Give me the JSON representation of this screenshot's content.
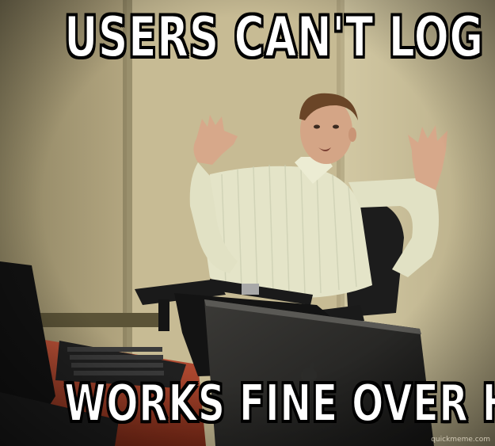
{
  "meme": {
    "top_text": "USERS CAN'T LOG IN?",
    "bottom_text": "WORKS FINE OVER HERE",
    "watermark": "quickmeme.com"
  },
  "colors": {
    "wall": "#c9bd97",
    "wall_shadow": "#8f845f",
    "shirt": "#e7e7cc",
    "skin": "#d8a98b",
    "hair": "#6b4526",
    "chair": "#1b1b1b",
    "desk": "#b44a2c",
    "laptop": "#2a2a2a",
    "caption_fill": "#ffffff",
    "caption_outline": "#000000"
  },
  "icons": [
    "apple-logo-icon"
  ]
}
